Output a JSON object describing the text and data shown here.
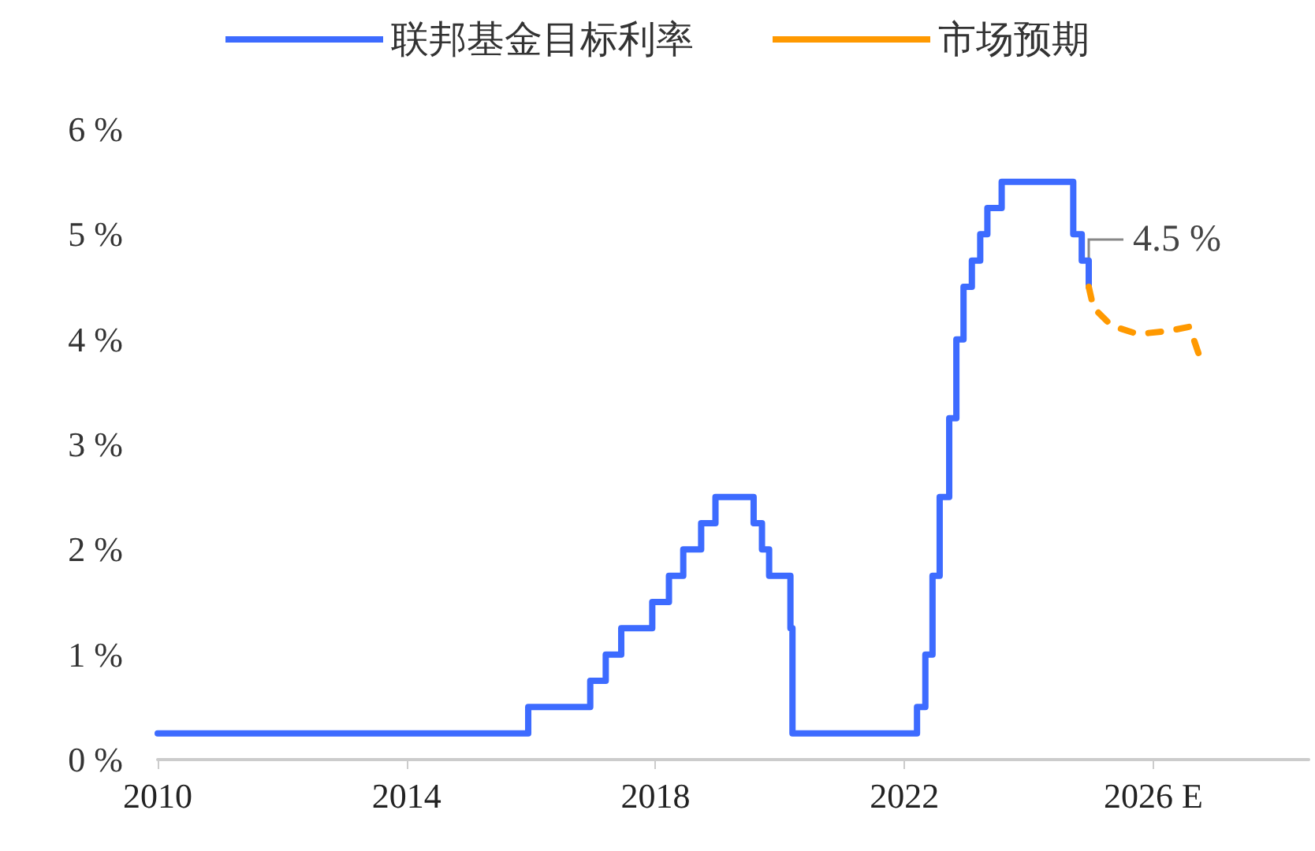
{
  "chart_data": {
    "type": "step",
    "series": [
      {
        "name": "联邦基金目标利率",
        "color": "#3d6bff",
        "line_style": "solid",
        "x": [
          "2010-01-01",
          "2015-12-16",
          "2016-12-14",
          "2017-03-15",
          "2017-06-14",
          "2017-12-13",
          "2018-03-21",
          "2018-06-13",
          "2018-09-26",
          "2018-12-19",
          "2019-07-31",
          "2019-09-18",
          "2019-10-30",
          "2020-03-03",
          "2020-03-15",
          "2022-03-16",
          "2022-05-04",
          "2022-06-15",
          "2022-07-27",
          "2022-09-21",
          "2022-11-02",
          "2022-12-14",
          "2023-02-01",
          "2023-03-22",
          "2023-05-03",
          "2023-07-26",
          "2024-09-18",
          "2024-11-07",
          "2024-12-18"
        ],
        "values": [
          0.25,
          0.5,
          0.75,
          1.0,
          1.25,
          1.5,
          1.75,
          2.0,
          2.25,
          2.5,
          2.25,
          2.0,
          1.75,
          1.25,
          0.25,
          0.5,
          1.0,
          1.75,
          2.5,
          3.25,
          4.0,
          4.5,
          4.75,
          5.0,
          5.25,
          5.5,
          5.0,
          4.75,
          4.5
        ]
      },
      {
        "name": "市场预期",
        "type": "line",
        "color": "#ff9900",
        "line_style": "dashed",
        "x": [
          "2024-12-18",
          "2025-01-15",
          "2025-05",
          "2025-10",
          "2026-04",
          "2026-08",
          "2026-10"
        ],
        "values": [
          4.5,
          4.3,
          4.13,
          4.05,
          4.08,
          4.12,
          3.83
        ]
      }
    ],
    "xlim": [
      "2010",
      "2028-07"
    ],
    "xticks": [
      "2010",
      "2014",
      "2018",
      "2022",
      {
        "value": "2026",
        "label": "2026 E"
      }
    ],
    "ylim": [
      0,
      6
    ],
    "yticks": [
      {
        "value": 0,
        "label": "0 %"
      },
      {
        "value": 1,
        "label": "1 %"
      },
      {
        "value": 2,
        "label": "2 %"
      },
      {
        "value": 3,
        "label": "3 %"
      },
      {
        "value": 4,
        "label": "4 %"
      },
      {
        "value": 5,
        "label": "5 %"
      },
      {
        "value": 6,
        "label": "6 %"
      }
    ],
    "annotations": [
      {
        "text": "4.5 %",
        "x": "2024-12-18",
        "y": 4.5
      }
    ],
    "legend": "top",
    "grid": false,
    "marker": "none"
  }
}
